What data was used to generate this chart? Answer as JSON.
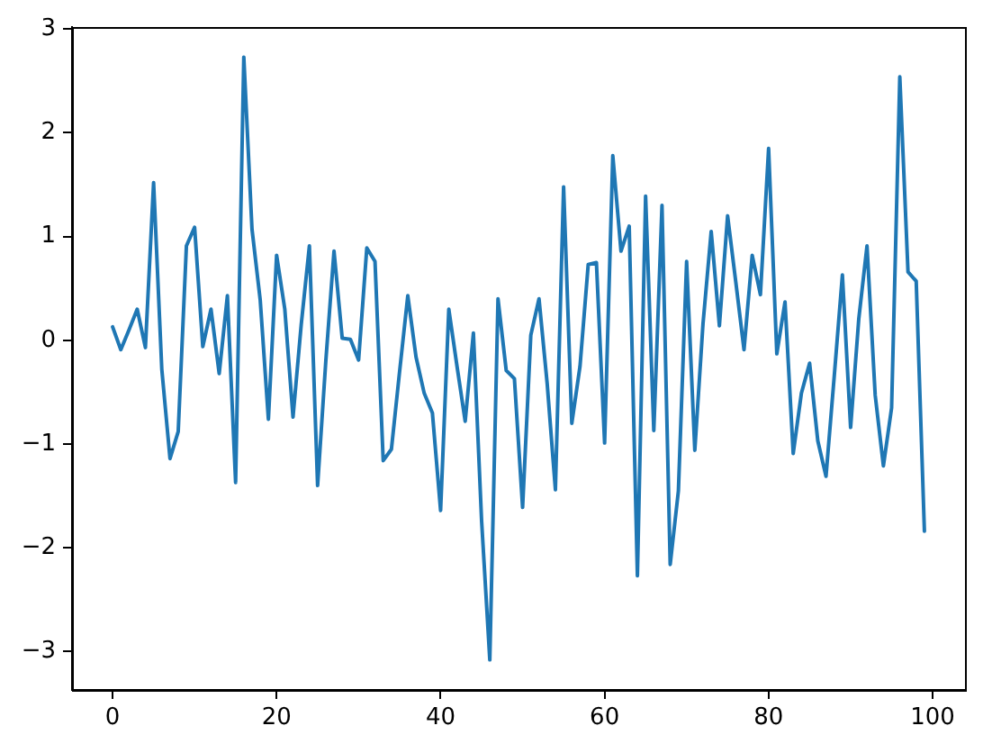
{
  "chart_data": {
    "type": "line",
    "color": "#1f77b4",
    "x": [
      0,
      1,
      2,
      3,
      4,
      5,
      6,
      7,
      8,
      9,
      10,
      11,
      12,
      13,
      14,
      15,
      16,
      17,
      18,
      19,
      20,
      21,
      22,
      23,
      24,
      25,
      26,
      27,
      28,
      29,
      30,
      31,
      32,
      33,
      34,
      35,
      36,
      37,
      38,
      39,
      40,
      41,
      42,
      43,
      44,
      45,
      46,
      47,
      48,
      49,
      50,
      51,
      52,
      53,
      54,
      55,
      56,
      57,
      58,
      59,
      60,
      61,
      62,
      63,
      64,
      65,
      66,
      67,
      68,
      69,
      70,
      71,
      72,
      73,
      74,
      75,
      76,
      77,
      78,
      79,
      80,
      81,
      82,
      83,
      84,
      85,
      86,
      87,
      88,
      89,
      90,
      91,
      92,
      93,
      94,
      95,
      96,
      97,
      98,
      99
    ],
    "values": [
      0.13,
      -0.09,
      0.1,
      0.3,
      -0.07,
      1.52,
      -0.28,
      -1.14,
      -0.88,
      0.91,
      1.09,
      -0.06,
      0.3,
      -0.32,
      0.43,
      -1.37,
      2.73,
      1.07,
      0.39,
      -0.76,
      0.82,
      0.3,
      -0.74,
      0.15,
      0.91,
      -1.4,
      -0.2,
      0.86,
      0.02,
      0.01,
      -0.19,
      0.89,
      0.76,
      -1.16,
      -1.05,
      -0.3,
      0.43,
      -0.16,
      -0.51,
      -0.7,
      -1.64,
      0.3,
      -0.25,
      -0.78,
      0.07,
      -1.74,
      -3.08,
      0.4,
      -0.29,
      -0.37,
      -1.61,
      0.05,
      0.4,
      -0.42,
      -1.44,
      1.48,
      -0.8,
      -0.25,
      0.73,
      0.75,
      -0.99,
      1.78,
      0.86,
      1.1,
      -2.27,
      1.39,
      -0.87,
      1.3,
      -2.16,
      -1.45,
      0.76,
      -1.06,
      0.16,
      1.05,
      0.14,
      1.2,
      0.56,
      -0.09,
      0.82,
      0.44,
      1.85,
      -0.13,
      0.37,
      -1.09,
      -0.51,
      -0.22,
      -0.97,
      -1.31,
      -0.35,
      0.63,
      -0.84,
      0.21,
      0.91,
      -0.53,
      -1.21,
      -0.65,
      2.54,
      0.66,
      0.57,
      -1.84
    ],
    "xlim": [
      -4.95,
      103.95
    ],
    "ylim": [
      -3.37,
      3.02
    ],
    "xticks": [
      0,
      20,
      40,
      60,
      80,
      100
    ],
    "yticks": [
      -3,
      -2,
      -1,
      0,
      1,
      2,
      3
    ]
  }
}
